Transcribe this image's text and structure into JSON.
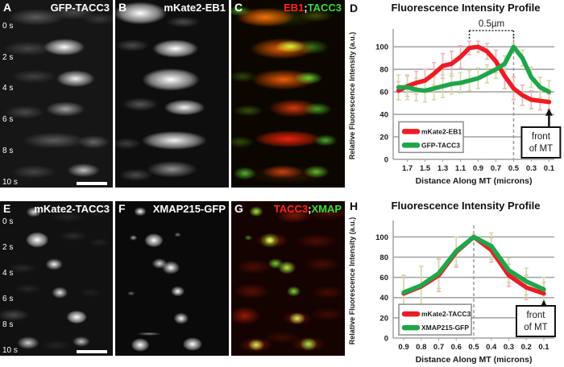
{
  "timepoints": [
    "0 s",
    "2 s",
    "4 s",
    "6 s",
    "8 s",
    "10 s"
  ],
  "panels": {
    "a": {
      "letter": "A",
      "title": "GFP-TACC3"
    },
    "b": {
      "letter": "B",
      "title": "mKate2-EB1"
    },
    "c": {
      "letter": "C",
      "red": "EB1",
      "sep": ";",
      "green": "TACC3"
    },
    "d": {
      "letter": "D"
    },
    "e": {
      "letter": "E",
      "title": "mKate2-TACC3"
    },
    "f": {
      "letter": "F",
      "title": "XMAP215-GFP"
    },
    "g": {
      "letter": "G",
      "red": "TACC3",
      "sep": ";",
      "green": "XMAP"
    },
    "h": {
      "letter": "H"
    }
  },
  "colors": {
    "red_series": "#ed1c24",
    "green_series": "#1ea64a",
    "red_error": "#f3b3b5",
    "green_error": "#d4daa6",
    "gridline": "#a0a0a0"
  },
  "chart_data": [
    {
      "panel": "D",
      "type": "line",
      "title": "Fluorescence Intensity Profile",
      "xlabel": "Distance Along MT (microns)",
      "ylabel": "Relative Fluorescence Intensity (a.u.)",
      "x_axis_reversed": true,
      "x": [
        1.8,
        1.7,
        1.6,
        1.5,
        1.4,
        1.3,
        1.2,
        1.1,
        1.0,
        0.9,
        0.8,
        0.7,
        0.6,
        0.5,
        0.4,
        0.3,
        0.2,
        0.1
      ],
      "x_ticks": [
        1.7,
        1.5,
        1.3,
        1.1,
        0.9,
        0.7,
        0.5,
        0.3,
        0.1
      ],
      "y_ticks": [
        0,
        20,
        40,
        60,
        80,
        100
      ],
      "ylim": [
        0,
        113
      ],
      "grid": true,
      "legend_position": "bottom-left",
      "series": [
        {
          "name": "mKate2-EB1",
          "color": "#ed1c24",
          "errcolor": "#f3b3b5",
          "values": [
            61,
            65,
            68,
            70,
            76,
            83,
            85,
            91,
            99,
            100,
            96,
            87,
            74,
            63,
            57,
            53,
            52,
            51
          ],
          "errors": [
            8,
            9,
            10,
            10,
            10,
            11,
            11,
            10,
            6,
            5,
            7,
            10,
            11,
            10,
            9,
            8,
            8,
            7
          ]
        },
        {
          "name": "GFP-TACC3",
          "color": "#1ea64a",
          "errcolor": "#d4daa6",
          "values": [
            64,
            64,
            62,
            61,
            63,
            65,
            67,
            68,
            70,
            72,
            76,
            80,
            85,
            100,
            90,
            73,
            64,
            60
          ],
          "errors": [
            11,
            11,
            10,
            10,
            10,
            10,
            9,
            9,
            9,
            9,
            8,
            8,
            7,
            3,
            7,
            9,
            9,
            10
          ]
        }
      ],
      "annotations": {
        "bracket_label": "0.5µm",
        "bracket_x": [
          1.0,
          0.5
        ],
        "dashed_x": 0.5,
        "arrow_x": 0.1,
        "arrow_label": [
          "front",
          "of MT"
        ]
      }
    },
    {
      "panel": "H",
      "type": "line",
      "title": "Fluorescence Intensity Profile",
      "xlabel": "Distance Along MT (microns)",
      "ylabel": "Relative Fluorescence Intensity (a.u.)",
      "x_axis_reversed": true,
      "x": [
        0.9,
        0.8,
        0.7,
        0.6,
        0.5,
        0.4,
        0.3,
        0.2,
        0.1
      ],
      "x_ticks": [
        0.9,
        0.8,
        0.7,
        0.6,
        0.5,
        0.4,
        0.3,
        0.2,
        0.1
      ],
      "y_ticks": [
        0,
        20,
        40,
        60,
        80,
        100
      ],
      "ylim": [
        0,
        113
      ],
      "grid": true,
      "legend_position": "bottom-left",
      "series": [
        {
          "name": "mKate2-TACC3",
          "color": "#ed1c24",
          "errcolor": "#f3b3b5",
          "values": [
            44,
            51,
            62,
            85,
            100,
            87,
            62,
            50,
            44
          ],
          "errors": [
            18,
            20,
            16,
            15,
            3,
            12,
            11,
            12,
            11
          ]
        },
        {
          "name": "XMAP215-GFP",
          "color": "#1ea64a",
          "errcolor": "#d4daa6",
          "values": [
            45,
            52,
            64,
            86,
            100,
            91,
            67,
            56,
            48
          ],
          "errors": [
            17,
            19,
            15,
            14,
            3,
            13,
            12,
            13,
            12
          ]
        }
      ],
      "annotations": {
        "dashed_x": 0.5,
        "arrow_x": 0.1,
        "arrow_label": [
          "front",
          "of MT"
        ]
      }
    }
  ]
}
